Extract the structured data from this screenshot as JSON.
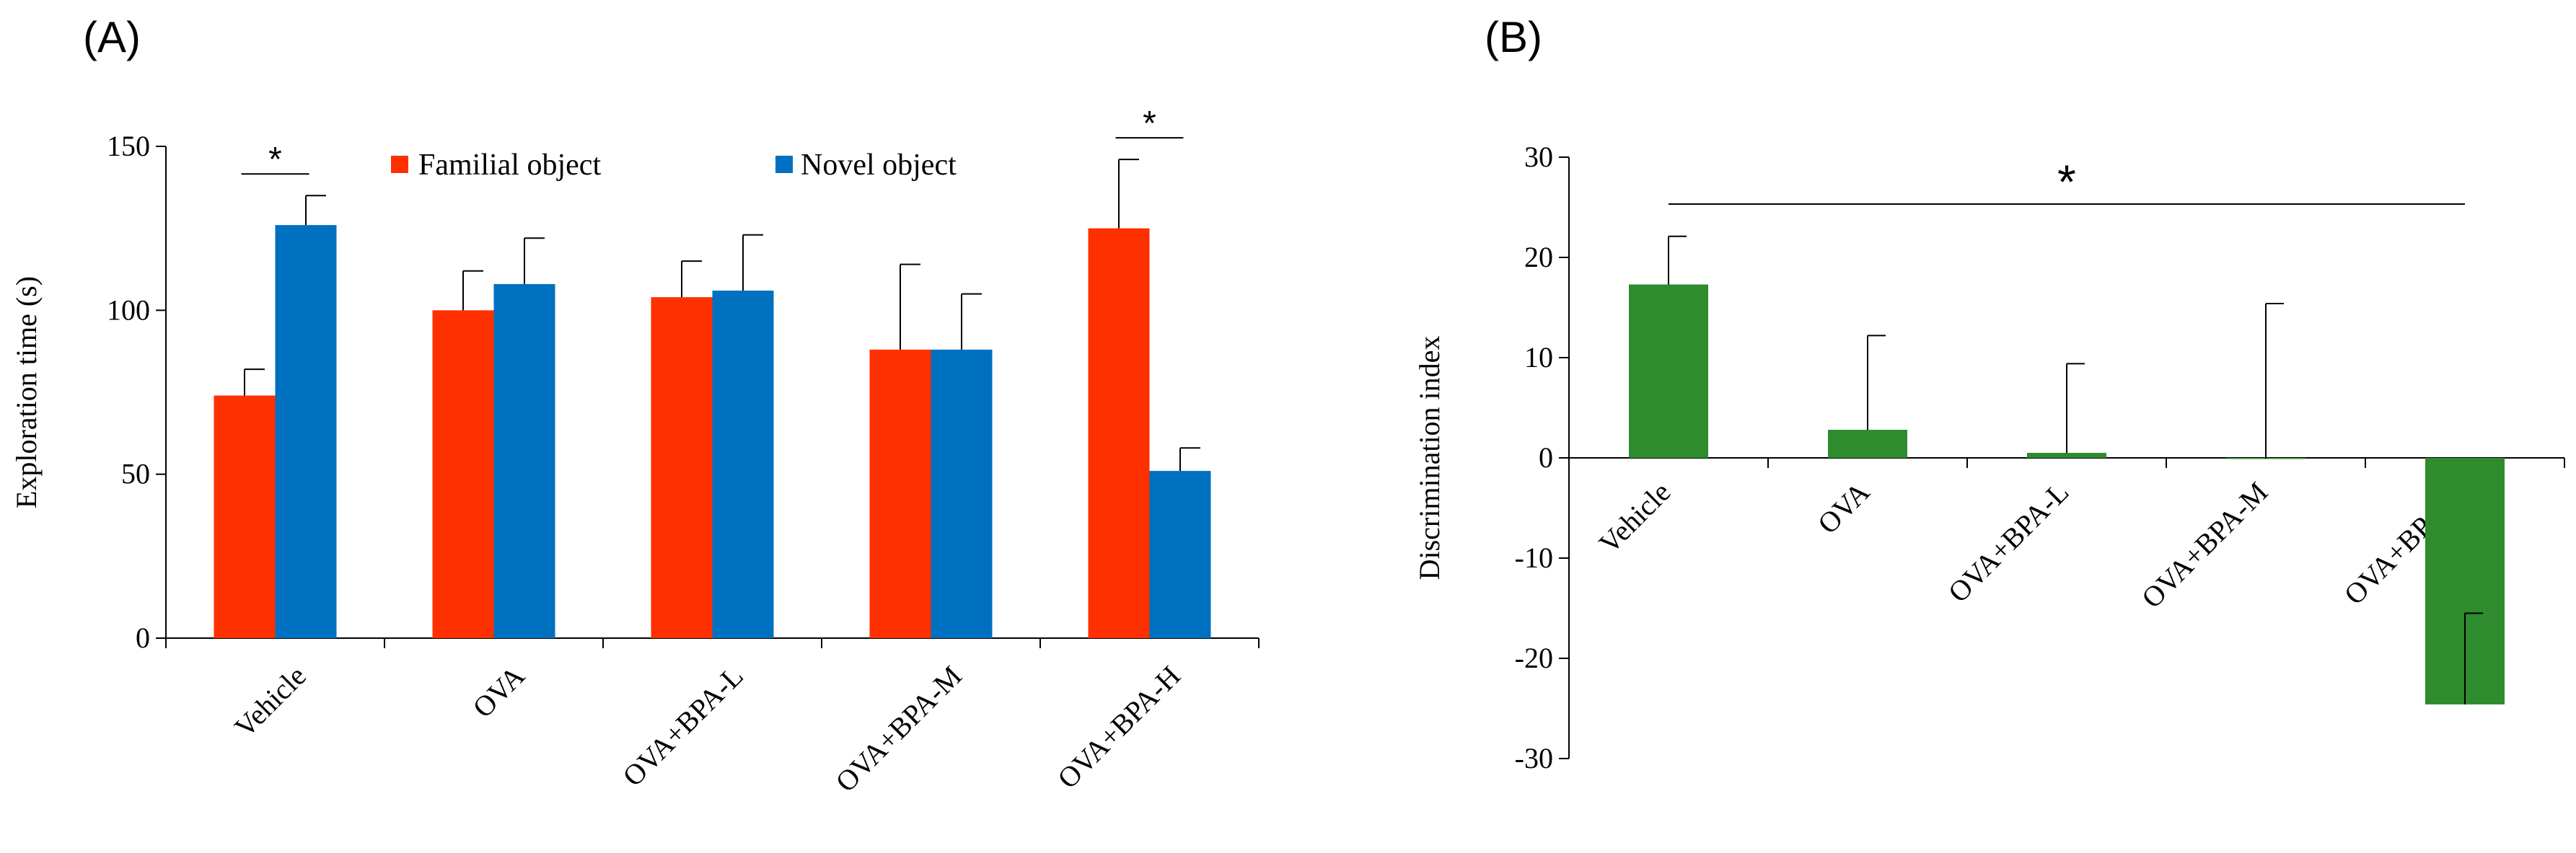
{
  "chart_data": [
    {
      "panel": "(A)",
      "type": "bar",
      "ylabel": "Exploration time (s)",
      "xlabel": "",
      "ylim": [
        0,
        150
      ],
      "yticks": [
        0,
        50,
        100,
        150
      ],
      "grid": false,
      "legend_position": "top",
      "categories": [
        "Vehicle",
        "OVA",
        "OVA+BPA-L",
        "OVA+BPA-M",
        "OVA+BPA-H"
      ],
      "series": [
        {
          "name": "Familial object",
          "color": "#FF3000",
          "values": [
            74,
            100,
            104,
            88,
            125
          ],
          "errors": [
            8,
            12,
            11,
            26,
            21
          ]
        },
        {
          "name": "Novel object",
          "color": "#0070C0",
          "values": [
            126,
            108,
            106,
            88,
            51
          ],
          "errors": [
            9,
            14,
            17,
            17,
            7
          ]
        }
      ],
      "significance": [
        {
          "category_index": 0,
          "label": "*"
        },
        {
          "category_index": 4,
          "label": "*"
        }
      ]
    },
    {
      "panel": "(B)",
      "type": "bar",
      "ylabel": "Discrimination index",
      "xlabel": "",
      "ylim": [
        -30,
        30
      ],
      "yticks": [
        -30,
        -20,
        -10,
        0,
        10,
        20,
        30
      ],
      "grid": false,
      "categories": [
        "Vehicle",
        "OVA",
        "OVA+BPA-L",
        "OVA+BPA-M",
        "OVA+BPA-H"
      ],
      "series": [
        {
          "name": "Discrimination index",
          "color": "#2E8B2E",
          "values": [
            17.3,
            2.8,
            0.5,
            -0.1,
            -24.6
          ],
          "errors": [
            4.8,
            9.4,
            8.9,
            15.5,
            9.1
          ]
        }
      ],
      "significance": [
        {
          "from_index": 0,
          "to_index": 4,
          "label": "*"
        }
      ]
    }
  ]
}
